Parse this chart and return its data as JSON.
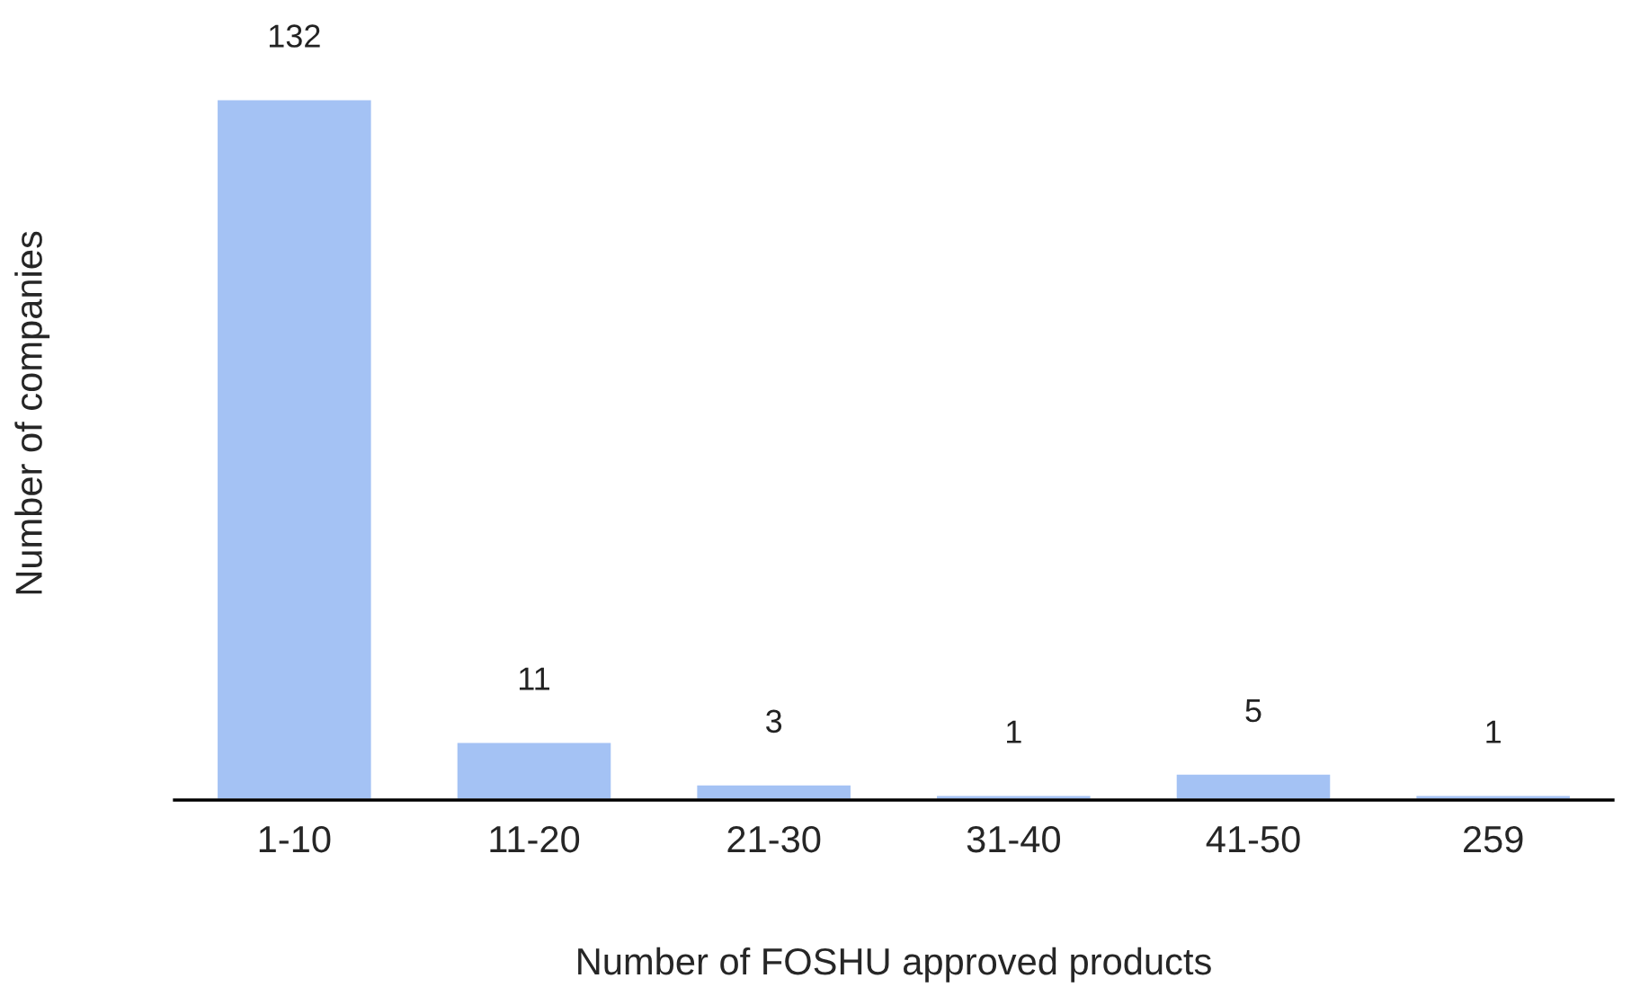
{
  "chart_data": {
    "type": "bar",
    "xlabel": "Number of FOSHU approved products",
    "ylabel": "Number of companies",
    "categories": [
      "1-10",
      "11-20",
      "21-30",
      "31-40",
      "41-50",
      "259"
    ],
    "values": [
      132,
      11,
      3,
      1,
      5,
      1
    ],
    "color": "#a4c2f4",
    "data_labels": true
  }
}
